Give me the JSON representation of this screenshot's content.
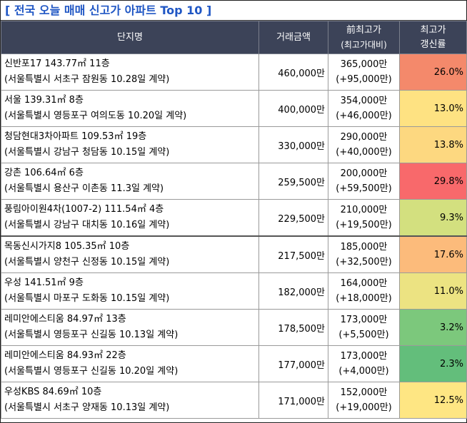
{
  "title": "[ 전국 오늘 매매 신고가 아파트 Top 10 ]",
  "headers": {
    "complex": "단지명",
    "price": "거래금액",
    "prev_line1": "前최고가",
    "prev_line2": "(최고가대비)",
    "rate_line1": "최고가",
    "rate_line2": "갱신률"
  },
  "rows": [
    {
      "name": "신반포17 143.77㎡ 11층",
      "location": "(서울특별시 서초구 잠원동 10.28일 계약)",
      "price": "460,000만",
      "prev_high": "365,000만",
      "prev_diff": "(+95,000만)",
      "rate": "26.0%",
      "rate_color": "#f4896b"
    },
    {
      "name": "서울 139.31㎡ 8층",
      "location": "(서울특별시 영등포구 여의도동 10.20일 계약)",
      "price": "400,000만",
      "prev_high": "354,000만",
      "prev_diff": "(+46,000만)",
      "rate": "13.0%",
      "rate_color": "#fee282"
    },
    {
      "name": "청담현대3차아파트 109.53㎡ 19층",
      "location": "(서울특별시 강남구 청담동 10.15일 계약)",
      "price": "330,000만",
      "prev_high": "290,000만",
      "prev_diff": "(+40,000만)",
      "rate": "13.8%",
      "rate_color": "#fdd880"
    },
    {
      "name": "강촌 106.64㎡ 6층",
      "location": "(서울특별시 용산구 이촌동 11.3일 계약)",
      "price": "259,500만",
      "prev_high": "200,000만",
      "prev_diff": "(+59,500만)",
      "rate": "29.8%",
      "rate_color": "#f8696b"
    },
    {
      "name": "풍림아이원4차(1007-2) 111.54㎡ 4층",
      "location": "(서울특별시 강남구 대치동 10.16일 계약)",
      "price": "229,500만",
      "prev_high": "210,000만",
      "prev_diff": "(+19,500만)",
      "rate": "9.3%",
      "rate_color": "#d3e07f"
    },
    {
      "name": "목동신시가지8 105.35㎡ 10층",
      "location": "(서울특별시 양천구 신정동 10.15일 계약)",
      "price": "217,500만",
      "prev_high": "185,000만",
      "prev_diff": "(+32,500만)",
      "rate": "17.6%",
      "rate_color": "#fcbb7b"
    },
    {
      "name": "우성 141.51㎡ 9층",
      "location": "(서울특별시 마포구 도화동 10.15일 계약)",
      "price": "182,000만",
      "prev_high": "164,000만",
      "prev_diff": "(+18,000만)",
      "rate": "11.0%",
      "rate_color": "#ece382"
    },
    {
      "name": "레미안에스티움 84.97㎡ 13층",
      "location": "(서울특별시 영등포구 신길동 10.13일 계약)",
      "price": "178,500만",
      "prev_high": "173,000만",
      "prev_diff": "(+5,500만)",
      "rate": "3.2%",
      "rate_color": "#7cc87c"
    },
    {
      "name": "레미안에스티움 84.93㎡ 22층",
      "location": "(서울특별시 영등포구 신길동 10.20일 계약)",
      "price": "177,000만",
      "prev_high": "173,000만",
      "prev_diff": "(+4,000만)",
      "rate": "2.3%",
      "rate_color": "#63be7b"
    },
    {
      "name": "우성KBS 84.69㎡ 10층",
      "location": "(서울특별시 서초구 양재동 10.13일 계약)",
      "price": "171,000만",
      "prev_high": "152,000만",
      "prev_diff": "(+19,000만)",
      "rate": "12.5%",
      "rate_color": "#fee683"
    }
  ]
}
